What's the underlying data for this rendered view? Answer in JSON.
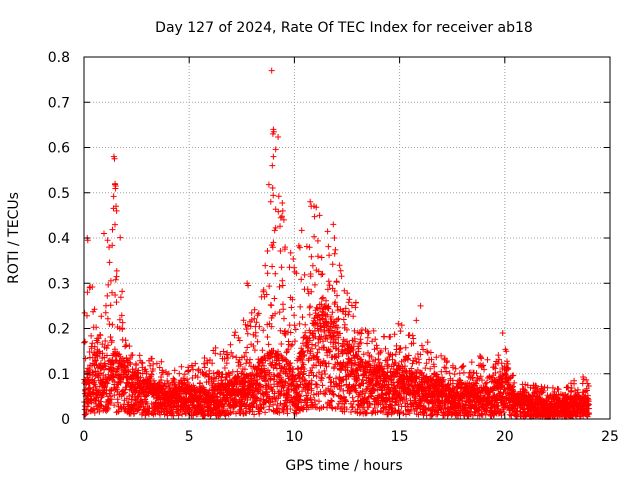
{
  "chart_data": {
    "type": "scatter",
    "title": "Day 127 of 2024, Rate Of TEC Index for receiver ab18",
    "xlabel": "GPS time / hours",
    "ylabel": "ROTI / TECUs",
    "xlim": [
      0,
      25
    ],
    "ylim": [
      0,
      0.8
    ],
    "x_ticks": [
      "0",
      "5",
      "10",
      "15",
      "20",
      "25"
    ],
    "y_ticks": [
      "0",
      "0.1",
      "0.2",
      "0.3",
      "0.4",
      "0.5",
      "0.6",
      "0.7",
      "0.8"
    ],
    "grid": true,
    "marker": "plus",
    "color": "#ff0000",
    "x_step_hours": 0.02,
    "series": [
      {
        "name": "ROTI",
        "envelope": {
          "x": [
            0,
            0.3,
            0.6,
            1.0,
            1.5,
            2.0,
            2.5,
            3.0,
            4.0,
            5.0,
            6.0,
            7.0,
            7.5,
            8.0,
            8.5,
            9.0,
            9.5,
            10.0,
            10.5,
            11.0,
            11.5,
            12.0,
            12.5,
            13.0,
            13.5,
            14.0,
            14.5,
            15.0,
            15.5,
            16.0,
            16.5,
            17.0,
            17.5,
            18.0,
            18.5,
            19.0,
            19.5,
            20.0,
            20.5,
            21.0,
            21.5,
            22.0,
            22.5,
            23.0,
            23.5,
            24.0
          ],
          "median": [
            0.05,
            0.08,
            0.09,
            0.07,
            0.09,
            0.07,
            0.06,
            0.05,
            0.04,
            0.04,
            0.04,
            0.05,
            0.06,
            0.06,
            0.08,
            0.09,
            0.08,
            0.07,
            0.11,
            0.14,
            0.15,
            0.12,
            0.1,
            0.08,
            0.07,
            0.07,
            0.06,
            0.07,
            0.06,
            0.06,
            0.05,
            0.05,
            0.04,
            0.04,
            0.04,
            0.04,
            0.04,
            0.06,
            0.03,
            0.03,
            0.03,
            0.02,
            0.02,
            0.03,
            0.03,
            0.03
          ],
          "max": [
            0.4,
            0.3,
            0.28,
            0.25,
            0.58,
            0.2,
            0.15,
            0.14,
            0.12,
            0.12,
            0.15,
            0.18,
            0.22,
            0.25,
            0.3,
            0.77,
            0.46,
            0.38,
            0.44,
            0.48,
            0.43,
            0.38,
            0.3,
            0.25,
            0.2,
            0.2,
            0.2,
            0.22,
            0.2,
            0.25,
            0.15,
            0.14,
            0.12,
            0.12,
            0.14,
            0.14,
            0.12,
            0.19,
            0.08,
            0.08,
            0.08,
            0.07,
            0.07,
            0.08,
            0.1,
            0.09
          ]
        },
        "peaks": [
          {
            "x": 1.42,
            "y": 0.58
          },
          {
            "x": 1.45,
            "y": 0.575
          },
          {
            "x": 1.48,
            "y": 0.52
          },
          {
            "x": 1.5,
            "y": 0.515
          },
          {
            "x": 1.52,
            "y": 0.47
          },
          {
            "x": 1.55,
            "y": 0.46
          },
          {
            "x": 0.15,
            "y": 0.4
          },
          {
            "x": 0.18,
            "y": 0.395
          },
          {
            "x": 0.95,
            "y": 0.41
          },
          {
            "x": 1.12,
            "y": 0.395
          },
          {
            "x": 8.92,
            "y": 0.77
          },
          {
            "x": 9.0,
            "y": 0.64
          },
          {
            "x": 9.02,
            "y": 0.635
          },
          {
            "x": 8.98,
            "y": 0.63
          },
          {
            "x": 9.0,
            "y": 0.58
          },
          {
            "x": 8.95,
            "y": 0.56
          },
          {
            "x": 8.88,
            "y": 0.48
          },
          {
            "x": 9.45,
            "y": 0.46
          },
          {
            "x": 9.5,
            "y": 0.44
          },
          {
            "x": 10.75,
            "y": 0.48
          },
          {
            "x": 10.8,
            "y": 0.47
          },
          {
            "x": 11.2,
            "y": 0.45
          },
          {
            "x": 11.85,
            "y": 0.43
          },
          {
            "x": 11.9,
            "y": 0.4
          },
          {
            "x": 19.9,
            "y": 0.19
          },
          {
            "x": 16.0,
            "y": 0.25
          },
          {
            "x": 7.75,
            "y": 0.3
          },
          {
            "x": 7.8,
            "y": 0.295
          }
        ]
      }
    ]
  }
}
